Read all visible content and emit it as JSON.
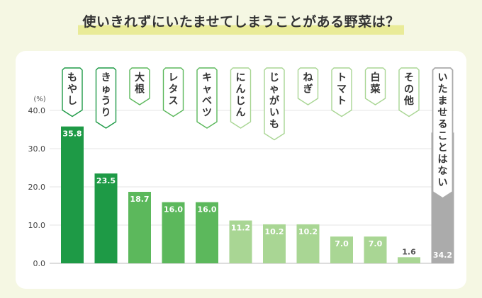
{
  "title": "使いきれずにいたませてしまうことがある野菜は？",
  "chart_data": {
    "type": "bar",
    "title": "使いきれずにいたませてしまうことがある野菜は？",
    "ylabel": "(%)",
    "ylim": [
      0,
      40
    ],
    "yticks": [
      "0.0",
      "10.0",
      "20.0",
      "30.0",
      "40.0"
    ],
    "grid": true,
    "categories": [
      "もやし",
      "きゅうり",
      "大根",
      "レタス",
      "キャベツ",
      "にんじん",
      "じゃがいも",
      "ねぎ",
      "トマト",
      "白菜",
      "その他",
      "いたませることはない"
    ],
    "values": [
      35.8,
      23.5,
      18.7,
      16.0,
      16.0,
      11.2,
      10.2,
      10.2,
      7.0,
      7.0,
      1.6,
      34.2
    ],
    "value_labels": [
      "35.8",
      "23.5",
      "18.7",
      "16.0",
      "16.0",
      "11.2",
      "10.2",
      "10.2",
      "7.0",
      "7.0",
      "1.6",
      "34.2"
    ],
    "colors": [
      "#1e9a46",
      "#1e9a46",
      "#5cb85c",
      "#5cb85c",
      "#5cb85c",
      "#a9d694",
      "#a9d694",
      "#a9d694",
      "#a9d694",
      "#a9d694",
      "#a9d694",
      "#ababab"
    ]
  }
}
